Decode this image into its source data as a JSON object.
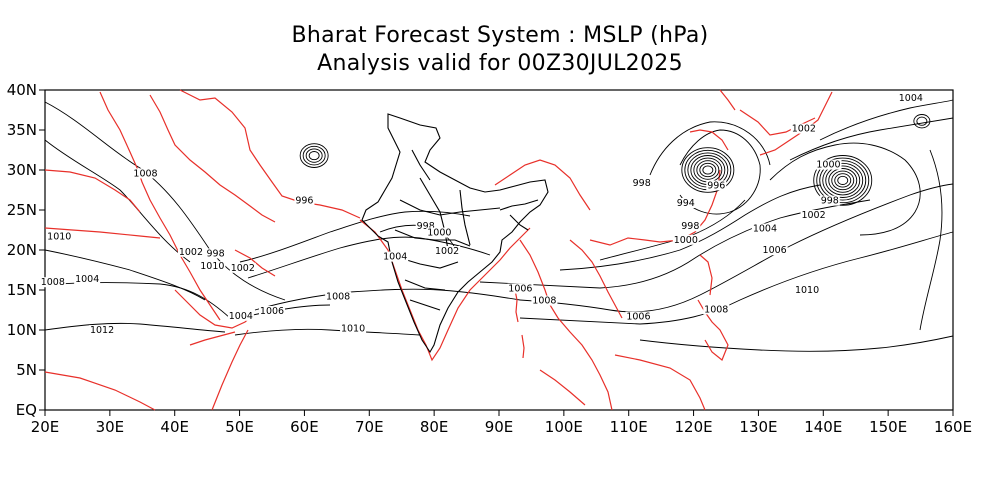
{
  "title": {
    "line1": "Bharat Forecast System : MSLP (hPa)",
    "line2": "Analysis valid for 00Z30JUL2025"
  },
  "map": {
    "lon_range": [
      20,
      160
    ],
    "lat_range": [
      0,
      40
    ],
    "x_ticks": [
      "20E",
      "30E",
      "40E",
      "50E",
      "60E",
      "70E",
      "80E",
      "90E",
      "100E",
      "110E",
      "120E",
      "130E",
      "140E",
      "150E",
      "160E"
    ],
    "y_ticks": [
      "EQ",
      "5N",
      "10N",
      "15N",
      "20N",
      "25N",
      "30N",
      "35N",
      "40N"
    ],
    "coastline_color": "#e8302a",
    "contour_color": "#000000"
  },
  "isobar_labels": [
    {
      "text": "1008",
      "lon": 35.5,
      "lat": 29.2
    },
    {
      "text": "1010",
      "lon": 22.2,
      "lat": 21.3
    },
    {
      "text": "1008",
      "lon": 21.2,
      "lat": 15.6
    },
    {
      "text": "1004",
      "lon": 26.5,
      "lat": 16.0
    },
    {
      "text": "1012",
      "lon": 28.8,
      "lat": 9.6
    },
    {
      "text": "1002",
      "lon": 42.5,
      "lat": 19.4
    },
    {
      "text": "998",
      "lon": 46.3,
      "lat": 19.2
    },
    {
      "text": "1010",
      "lon": 45.8,
      "lat": 17.6
    },
    {
      "text": "1002",
      "lon": 50.5,
      "lat": 17.4
    },
    {
      "text": "1004",
      "lon": 50.2,
      "lat": 11.4
    },
    {
      "text": "1006",
      "lon": 55.0,
      "lat": 12.0
    },
    {
      "text": "996",
      "lon": 60.0,
      "lat": 25.8
    },
    {
      "text": "1008",
      "lon": 65.2,
      "lat": 13.8
    },
    {
      "text": "1010",
      "lon": 67.5,
      "lat": 9.8
    },
    {
      "text": "998",
      "lon": 78.7,
      "lat": 22.6
    },
    {
      "text": "1000",
      "lon": 80.8,
      "lat": 21.8
    },
    {
      "text": "1002",
      "lon": 82.0,
      "lat": 19.5
    },
    {
      "text": "1004",
      "lon": 74.0,
      "lat": 18.8
    },
    {
      "text": "1006",
      "lon": 93.3,
      "lat": 14.8
    },
    {
      "text": "1008",
      "lon": 97.0,
      "lat": 13.3
    },
    {
      "text": "1006",
      "lon": 111.5,
      "lat": 11.3
    },
    {
      "text": "998",
      "lon": 112.0,
      "lat": 28.0
    },
    {
      "text": "996",
      "lon": 123.5,
      "lat": 27.7
    },
    {
      "text": "994",
      "lon": 118.8,
      "lat": 25.5
    },
    {
      "text": "998",
      "lon": 119.5,
      "lat": 22.6
    },
    {
      "text": "1000",
      "lon": 118.8,
      "lat": 20.9
    },
    {
      "text": "1008",
      "lon": 123.5,
      "lat": 12.2
    },
    {
      "text": "1004",
      "lon": 131.0,
      "lat": 22.3
    },
    {
      "text": "1006",
      "lon": 132.5,
      "lat": 19.6
    },
    {
      "text": "1010",
      "lon": 137.5,
      "lat": 14.6
    },
    {
      "text": "1002",
      "lon": 138.5,
      "lat": 24.0
    },
    {
      "text": "998",
      "lon": 141.0,
      "lat": 25.8
    },
    {
      "text": "1000",
      "lon": 140.8,
      "lat": 30.3
    },
    {
      "text": "1002",
      "lon": 137.0,
      "lat": 34.8
    },
    {
      "text": "1004",
      "lon": 153.5,
      "lat": 38.6
    }
  ],
  "lows": [
    {
      "lon": 122.2,
      "lat": 30.0,
      "rings": 8
    },
    {
      "lon": 143.0,
      "lat": 28.7,
      "rings": 9
    },
    {
      "lon": 155.2,
      "lat": 36.1,
      "rings": 2
    },
    {
      "lon": 61.5,
      "lat": 31.8,
      "rings": 4
    }
  ]
}
